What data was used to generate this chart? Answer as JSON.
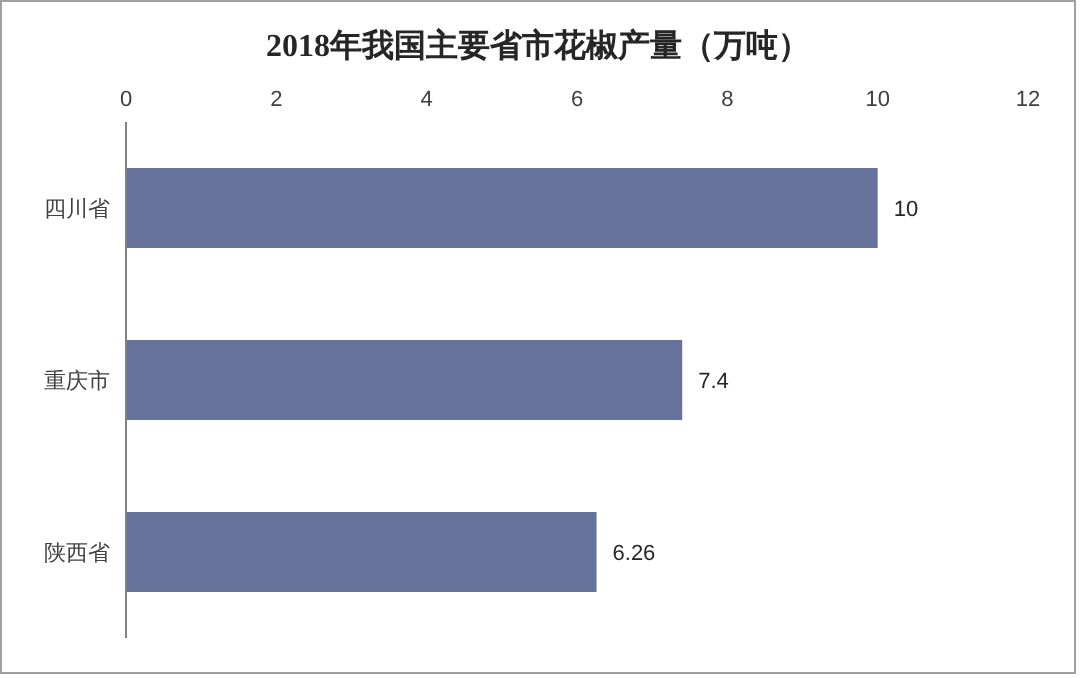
{
  "chart_data": {
    "type": "bar",
    "orientation": "horizontal",
    "title": "2018年我国主要省市花椒产量（万吨）",
    "categories": [
      "四川省",
      "重庆市",
      "陕西省"
    ],
    "values": [
      10,
      7.4,
      6.26
    ],
    "color": "#67729a",
    "xlim": [
      0,
      12
    ],
    "xticks": [
      0,
      2,
      4,
      6,
      8,
      10,
      12
    ],
    "data_labels": true,
    "grid": false,
    "legend": false
  }
}
